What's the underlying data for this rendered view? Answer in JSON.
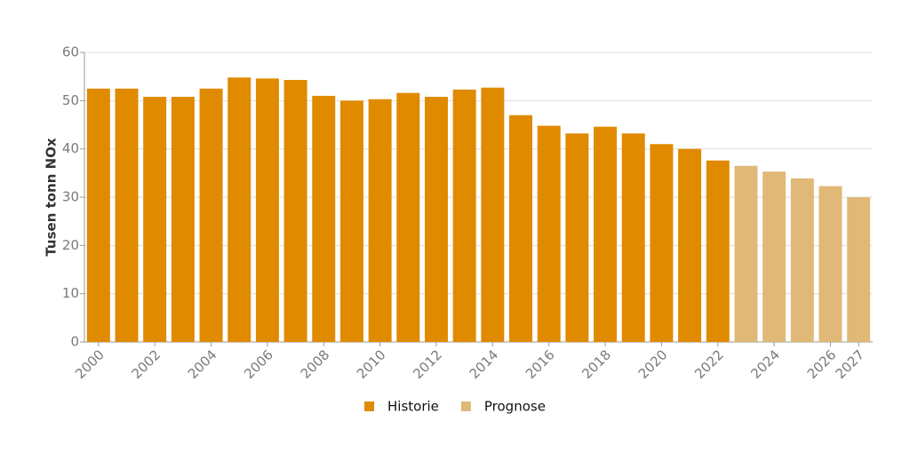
{
  "chart_data": {
    "type": "bar",
    "y_label": "Tusen tonn NOx",
    "categories": [
      "2000",
      null,
      "2002",
      null,
      "2004",
      null,
      "2006",
      null,
      "2008",
      null,
      "2010",
      null,
      "2012",
      null,
      "2014",
      null,
      "2016",
      null,
      "2018",
      null,
      "2020",
      null,
      "2022",
      null,
      "2024",
      null,
      "2026",
      "2027"
    ],
    "series": [
      {
        "name": "Historie",
        "color": "#e08a00",
        "values": [
          52.5,
          52.5,
          50.8,
          50.8,
          52.5,
          54.8,
          54.6,
          54.3,
          51.0,
          50.0,
          50.3,
          51.6,
          50.8,
          52.3,
          52.7,
          47.0,
          44.8,
          43.2,
          44.6,
          43.2,
          41.0,
          40.0,
          37.6,
          null,
          null,
          null,
          null,
          null
        ]
      },
      {
        "name": "Prognose",
        "color": "#e0b878",
        "values": [
          null,
          null,
          null,
          null,
          null,
          null,
          null,
          null,
          null,
          null,
          null,
          null,
          null,
          null,
          null,
          null,
          null,
          null,
          null,
          null,
          null,
          null,
          null,
          36.5,
          35.3,
          33.9,
          32.3,
          30.0
        ]
      }
    ],
    "ylim": [
      0,
      60
    ],
    "yticks": [
      0,
      10,
      20,
      30,
      40,
      50,
      60
    ],
    "grid": true
  }
}
